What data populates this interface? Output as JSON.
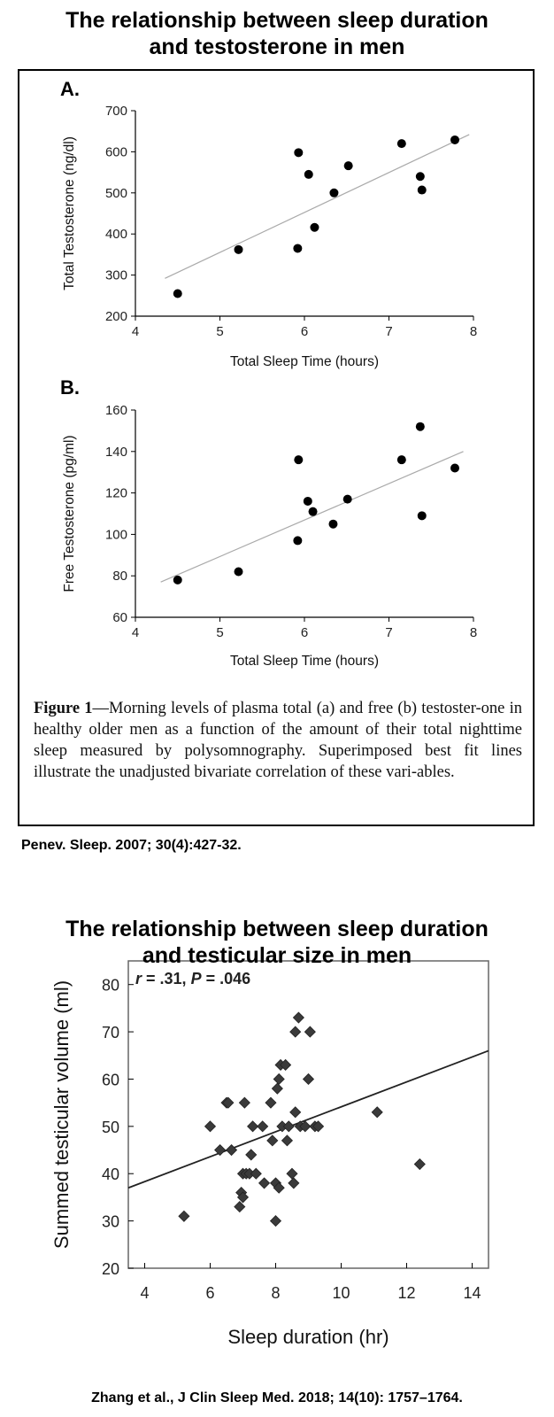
{
  "titles": {
    "top_line1": "The relationship between sleep duration",
    "top_line2": "and testosterone in men",
    "bottom_line1": "The relationship between sleep duration",
    "bottom_line2": "and testicular size in men"
  },
  "figure1": {
    "caption_label": "Figure 1",
    "caption_text": "—Morning levels of plasma total (a) and free (b) testoster-one in healthy older men as a function of the amount of their total nighttime sleep measured by polysomnography. Superimposed best fit lines illustrate the unadjusted bivariate correlation of these vari-ables.",
    "citation": "Penev. Sleep. 2007; 30(4):427-32."
  },
  "figure2": {
    "citation": "Zhang et al., J Clin Sleep Med. 2018; 14(10): 1757–1764."
  },
  "chart_data": [
    {
      "type": "scatter",
      "panel_label": "A.",
      "xlabel": "Total Sleep Time (hours)",
      "ylabel": "Total Testosterone (ng/dl)",
      "xlim": [
        4,
        8
      ],
      "ylim": [
        200,
        700
      ],
      "xticks": [
        4,
        5,
        6,
        7,
        8
      ],
      "yticks": [
        200,
        300,
        400,
        500,
        600,
        700
      ],
      "grid": false,
      "points": [
        {
          "x": 4.5,
          "y": 255
        },
        {
          "x": 5.22,
          "y": 362
        },
        {
          "x": 5.92,
          "y": 365
        },
        {
          "x": 5.93,
          "y": 598
        },
        {
          "x": 6.05,
          "y": 545
        },
        {
          "x": 6.12,
          "y": 416
        },
        {
          "x": 6.35,
          "y": 500
        },
        {
          "x": 6.52,
          "y": 566
        },
        {
          "x": 7.15,
          "y": 620
        },
        {
          "x": 7.37,
          "y": 540
        },
        {
          "x": 7.39,
          "y": 507
        },
        {
          "x": 7.78,
          "y": 629
        }
      ],
      "fit_line": {
        "x": [
          4.35,
          7.95
        ],
        "y": [
          292,
          642
        ]
      }
    },
    {
      "type": "scatter",
      "panel_label": "B.",
      "xlabel": "Total Sleep Time (hours)",
      "ylabel": "Free Testosterone (pg/ml)",
      "xlim": [
        4,
        8
      ],
      "ylim": [
        60,
        160
      ],
      "xticks": [
        4,
        5,
        6,
        7,
        8
      ],
      "yticks": [
        60,
        80,
        100,
        120,
        140,
        160
      ],
      "grid": false,
      "points": [
        {
          "x": 4.5,
          "y": 78
        },
        {
          "x": 5.22,
          "y": 82
        },
        {
          "x": 5.92,
          "y": 97
        },
        {
          "x": 5.93,
          "y": 136
        },
        {
          "x": 6.04,
          "y": 116
        },
        {
          "x": 6.1,
          "y": 111
        },
        {
          "x": 6.34,
          "y": 105
        },
        {
          "x": 6.51,
          "y": 117
        },
        {
          "x": 7.15,
          "y": 136
        },
        {
          "x": 7.37,
          "y": 152
        },
        {
          "x": 7.39,
          "y": 109
        },
        {
          "x": 7.78,
          "y": 132
        }
      ],
      "fit_line": {
        "x": [
          4.3,
          7.88
        ],
        "y": [
          77,
          140
        ]
      }
    },
    {
      "type": "scatter",
      "annotation_r": "r",
      "annotation_r_value": " = .31, ",
      "annotation_p": "P",
      "annotation_p_value": " = .046",
      "xlabel": "Sleep duration (hr)",
      "ylabel": "Summed testicular volume (ml)",
      "xlim": [
        3.5,
        14.5
      ],
      "ylim": [
        20,
        85
      ],
      "xticks": [
        4,
        6,
        8,
        10,
        12,
        14
      ],
      "yticks": [
        20,
        30,
        40,
        50,
        60,
        70,
        80
      ],
      "grid": false,
      "points": [
        {
          "x": 5.2,
          "y": 31
        },
        {
          "x": 6.0,
          "y": 50
        },
        {
          "x": 6.3,
          "y": 45
        },
        {
          "x": 6.5,
          "y": 55
        },
        {
          "x": 6.55,
          "y": 55
        },
        {
          "x": 6.65,
          "y": 45
        },
        {
          "x": 6.9,
          "y": 33
        },
        {
          "x": 6.95,
          "y": 36
        },
        {
          "x": 7.0,
          "y": 35
        },
        {
          "x": 7.0,
          "y": 40
        },
        {
          "x": 7.05,
          "y": 55
        },
        {
          "x": 7.1,
          "y": 40
        },
        {
          "x": 7.2,
          "y": 40
        },
        {
          "x": 7.25,
          "y": 44
        },
        {
          "x": 7.3,
          "y": 50
        },
        {
          "x": 7.4,
          "y": 40
        },
        {
          "x": 7.6,
          "y": 50
        },
        {
          "x": 7.65,
          "y": 38
        },
        {
          "x": 7.85,
          "y": 55
        },
        {
          "x": 7.9,
          "y": 47
        },
        {
          "x": 8.0,
          "y": 30
        },
        {
          "x": 8.0,
          "y": 38
        },
        {
          "x": 8.05,
          "y": 58
        },
        {
          "x": 8.1,
          "y": 60
        },
        {
          "x": 8.1,
          "y": 37
        },
        {
          "x": 8.15,
          "y": 63
        },
        {
          "x": 8.2,
          "y": 50
        },
        {
          "x": 8.3,
          "y": 63
        },
        {
          "x": 8.35,
          "y": 47
        },
        {
          "x": 8.4,
          "y": 50
        },
        {
          "x": 8.5,
          "y": 40
        },
        {
          "x": 8.55,
          "y": 38
        },
        {
          "x": 8.6,
          "y": 53
        },
        {
          "x": 8.6,
          "y": 70
        },
        {
          "x": 8.7,
          "y": 73
        },
        {
          "x": 8.75,
          "y": 50
        },
        {
          "x": 8.9,
          "y": 50
        },
        {
          "x": 9.0,
          "y": 60
        },
        {
          "x": 9.05,
          "y": 70
        },
        {
          "x": 9.2,
          "y": 50
        },
        {
          "x": 9.3,
          "y": 50
        },
        {
          "x": 11.1,
          "y": 53
        },
        {
          "x": 12.4,
          "y": 42
        }
      ],
      "fit_line": {
        "x": [
          3.5,
          14.5
        ],
        "y": [
          37,
          66
        ]
      }
    }
  ]
}
